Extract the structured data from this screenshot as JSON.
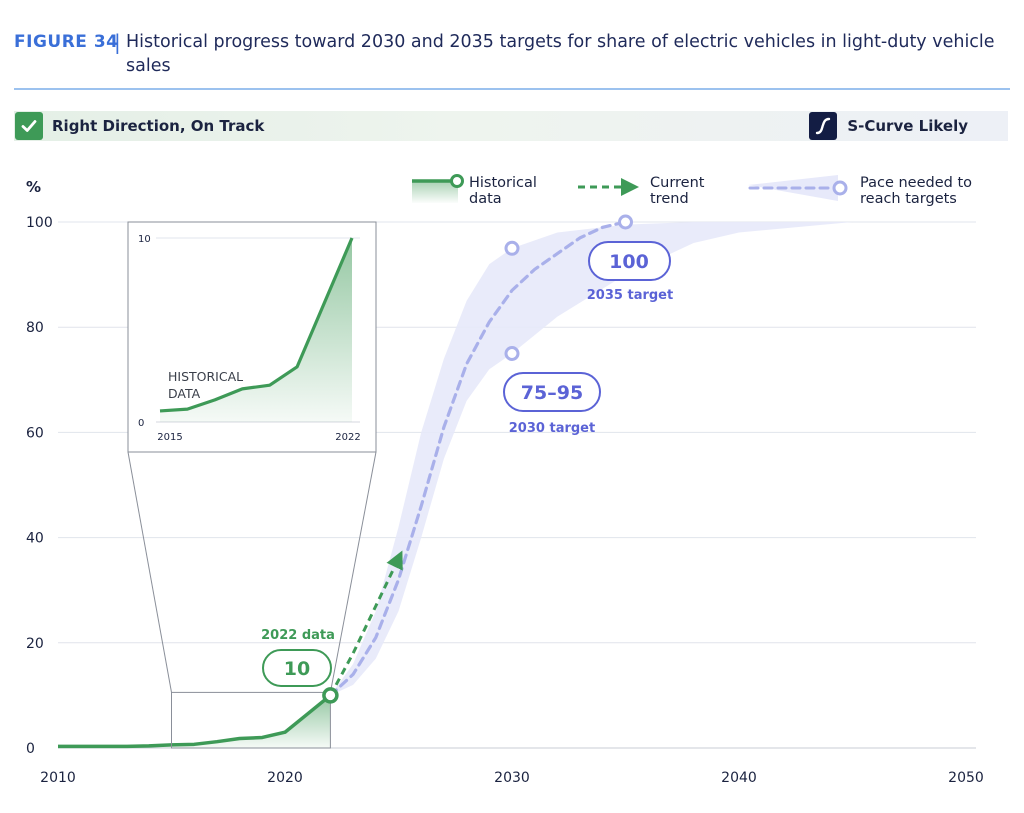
{
  "figure": {
    "label": "FIGURE 34",
    "separator": "|",
    "title": "Historical progress toward 2030 and 2035 targets for share of electric vehicles in light-duty vehicle sales"
  },
  "status": {
    "left_label": "Right Direction, On Track",
    "left_icon": "checkmark-icon",
    "right_label": "S-Curve Likely",
    "right_icon": "s-curve-icon",
    "green": "#3e9a57",
    "navy": "#131d44"
  },
  "chart_data": {
    "type": "line",
    "ylabel": "%",
    "xlim": [
      2010,
      2050
    ],
    "ylim": [
      0,
      100
    ],
    "xticks": [
      2010,
      2020,
      2030,
      2040,
      2050
    ],
    "yticks": [
      0,
      20,
      40,
      60,
      80,
      100
    ],
    "grid": true,
    "legend_position": "top",
    "colors": {
      "historical": "#3e9a57",
      "trend": "#3e9a57",
      "pace": "#a9b0ea",
      "band": "#e7e9fa",
      "target": "#5b63d6",
      "grid": "#e1e4ec"
    },
    "series": [
      {
        "name": "Historical data",
        "style": "solid-area",
        "x": [
          2010,
          2011,
          2012,
          2013,
          2014,
          2015,
          2016,
          2017,
          2018,
          2019,
          2020,
          2021,
          2022
        ],
        "y": [
          0.3,
          0.3,
          0.3,
          0.3,
          0.4,
          0.6,
          0.7,
          1.2,
          1.8,
          2.0,
          3.0,
          6.5,
          10
        ]
      },
      {
        "name": "Current trend",
        "style": "dashed-arrow",
        "x": [
          2022,
          2023,
          2024,
          2025
        ],
        "y": [
          10,
          18,
          27,
          36
        ]
      },
      {
        "name": "Pace needed to reach targets",
        "style": "dotted",
        "x": [
          2022,
          2023,
          2024,
          2025,
          2026,
          2027,
          2028,
          2029,
          2030,
          2031,
          2032,
          2033,
          2034,
          2035
        ],
        "y": [
          10,
          14,
          21,
          32,
          46,
          61,
          73,
          81,
          87,
          91,
          94,
          97,
          99,
          100
        ]
      }
    ],
    "band": {
      "x": [
        2022,
        2023,
        2024,
        2025,
        2026,
        2027,
        2028,
        2029,
        2030,
        2032,
        2035,
        2038,
        2040,
        2045
      ],
      "lower": [
        10,
        12,
        17,
        26,
        40,
        55,
        66,
        72,
        75,
        82,
        90,
        96,
        98,
        100
      ],
      "upper": [
        10,
        16,
        26,
        42,
        60,
        74,
        85,
        92,
        95,
        98,
        99.5,
        100,
        100,
        100
      ]
    },
    "annotations": [
      {
        "type": "point",
        "x": 2022,
        "y": 10,
        "label": "10",
        "caption": "2022 data",
        "color": "green"
      },
      {
        "type": "range-target",
        "x": 2030,
        "y_low": 75,
        "y_high": 95,
        "label": "75–95",
        "caption": "2030 target"
      },
      {
        "type": "point-target",
        "x": 2035,
        "y": 100,
        "label": "100",
        "caption": "2035 target"
      }
    ],
    "inset": {
      "text": [
        "HISTORICAL",
        "DATA"
      ],
      "x": [
        2015,
        2016,
        2017,
        2018,
        2019,
        2020,
        2021,
        2022
      ],
      "y": [
        0.6,
        0.7,
        1.2,
        1.8,
        2.0,
        3.0,
        6.5,
        10
      ],
      "xticks": [
        2015,
        2022
      ],
      "yticks": [
        0,
        10
      ],
      "xlim": [
        2015,
        2022
      ],
      "ylim": [
        0,
        10
      ],
      "zoom_box": {
        "x_range": [
          2015,
          2022
        ],
        "y_range": [
          0,
          10
        ]
      }
    },
    "legend": [
      {
        "key": "historical",
        "label_lines": [
          "Historical",
          "data"
        ]
      },
      {
        "key": "trend",
        "label_lines": [
          "Current",
          "trend"
        ]
      },
      {
        "key": "pace",
        "label_lines": [
          "Pace needed to",
          "reach targets"
        ]
      }
    ]
  }
}
